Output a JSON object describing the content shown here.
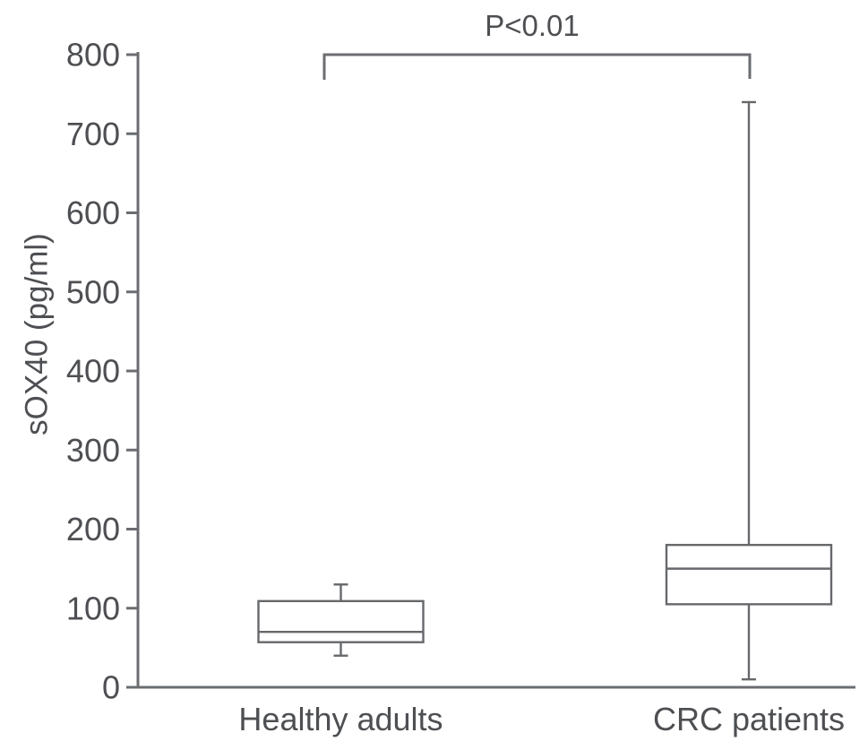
{
  "chart_data": {
    "type": "boxplot",
    "title": "",
    "ylabel": "sOX40 (pg/ml)",
    "xlabel": "",
    "ylim": [
      0,
      800
    ],
    "yticks": [
      0,
      100,
      200,
      300,
      400,
      500,
      600,
      700,
      800
    ],
    "categories": [
      "Healthy adults",
      "CRC patients"
    ],
    "series": [
      {
        "name": "Healthy adults",
        "min": 40,
        "q1": 57,
        "median": 70,
        "q3": 109,
        "max": 130
      },
      {
        "name": "CRC patients",
        "min": 10,
        "q1": 105,
        "median": 150,
        "q3": 180,
        "max": 740
      }
    ],
    "annotation": {
      "text": "P<0.01",
      "between": [
        "Healthy adults",
        "CRC patients"
      ]
    },
    "grid": false,
    "legend": null,
    "colors": {
      "line": "#6b6d70",
      "box_line": "#66686b",
      "text": "#4d4f52",
      "background": "#ffffff"
    }
  }
}
